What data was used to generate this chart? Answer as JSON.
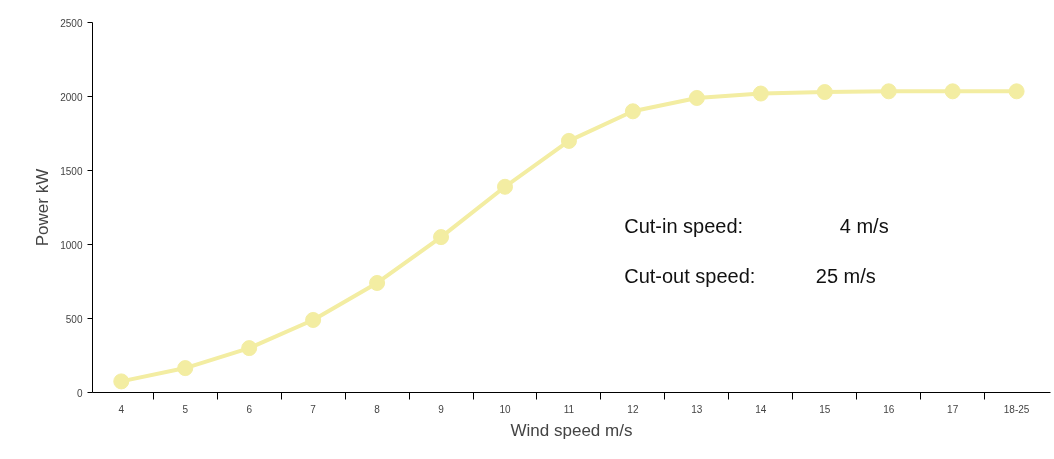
{
  "chart_data": {
    "type": "line",
    "xlabel": "Wind speed m/s",
    "ylabel": "Power kW",
    "categories": [
      "4",
      "5",
      "6",
      "7",
      "8",
      "9",
      "10",
      "11",
      "12",
      "13",
      "14",
      "15",
      "16",
      "17",
      "18-25"
    ],
    "series": [
      {
        "color": "#f3eda2",
        "values": [
          75,
          165,
          300,
          490,
          740,
          1050,
          1390,
          1700,
          1900,
          1990,
          2020,
          2030,
          2035,
          2035,
          2035
        ]
      }
    ],
    "ylim": [
      0,
      2500
    ],
    "yticks": [
      0,
      500,
      1000,
      1500,
      2000,
      2500
    ],
    "grid": false,
    "marker": "circle",
    "line_style": "solid",
    "annotations": [
      "Cut-in speed:",
      "4 m/s",
      "Cut-out speed:",
      "25 m/s"
    ]
  }
}
